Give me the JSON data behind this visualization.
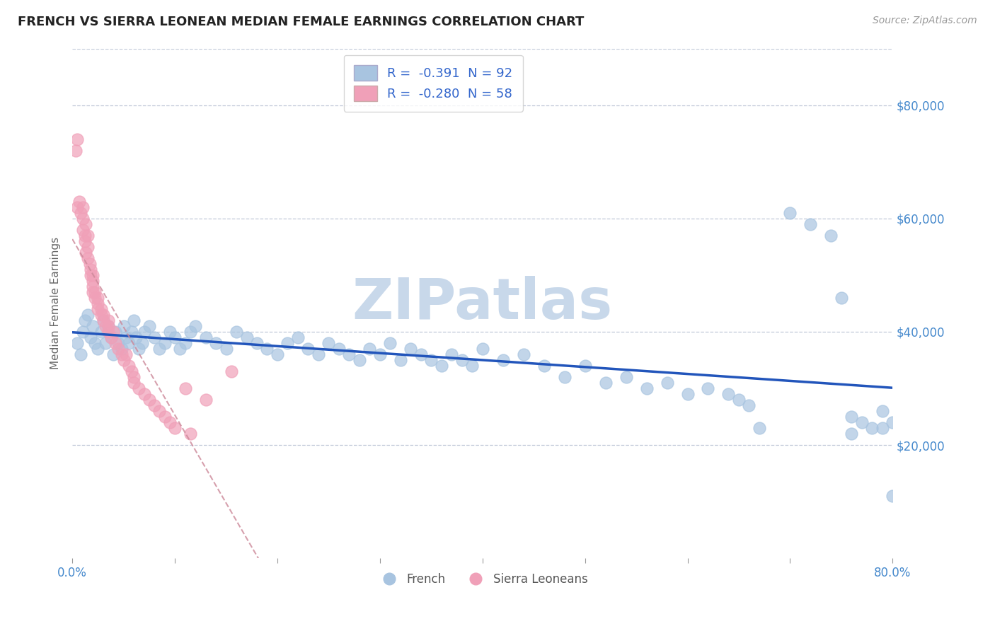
{
  "title": "FRENCH VS SIERRA LEONEAN MEDIAN FEMALE EARNINGS CORRELATION CHART",
  "source": "Source: ZipAtlas.com",
  "ylabel": "Median Female Earnings",
  "xlim": [
    0.0,
    0.8
  ],
  "ylim": [
    0,
    90000
  ],
  "yticks": [
    20000,
    40000,
    60000,
    80000
  ],
  "yticklabels": [
    "$20,000",
    "$40,000",
    "$60,000",
    "$80,000"
  ],
  "legend_r1": "R =  -0.391  N = 92",
  "legend_r2": "R =  -0.280  N = 58",
  "french_color": "#a8c4e0",
  "sierra_color": "#f0a0b8",
  "trendline_french_color": "#2255bb",
  "trendline_sierra_color": "#cc8899",
  "watermark": "ZIPatlas",
  "watermark_color": "#c8d8ea",
  "background_color": "#ffffff",
  "grid_color": "#c0c8d8",
  "french_x": [
    0.005,
    0.008,
    0.01,
    0.012,
    0.015,
    0.018,
    0.02,
    0.022,
    0.025,
    0.028,
    0.03,
    0.032,
    0.035,
    0.038,
    0.04,
    0.042,
    0.045,
    0.048,
    0.05,
    0.052,
    0.055,
    0.058,
    0.06,
    0.062,
    0.065,
    0.068,
    0.07,
    0.075,
    0.08,
    0.085,
    0.09,
    0.095,
    0.1,
    0.105,
    0.11,
    0.115,
    0.12,
    0.13,
    0.14,
    0.15,
    0.16,
    0.17,
    0.18,
    0.19,
    0.2,
    0.21,
    0.22,
    0.23,
    0.24,
    0.25,
    0.26,
    0.27,
    0.28,
    0.29,
    0.3,
    0.31,
    0.32,
    0.33,
    0.34,
    0.35,
    0.36,
    0.37,
    0.38,
    0.39,
    0.4,
    0.42,
    0.44,
    0.46,
    0.48,
    0.5,
    0.52,
    0.54,
    0.56,
    0.58,
    0.6,
    0.62,
    0.64,
    0.65,
    0.66,
    0.67,
    0.7,
    0.72,
    0.74,
    0.75,
    0.76,
    0.77,
    0.78,
    0.79,
    0.8,
    0.8,
    0.79,
    0.76
  ],
  "french_y": [
    38000,
    36000,
    40000,
    42000,
    43000,
    39000,
    41000,
    38000,
    37000,
    40000,
    42000,
    38000,
    41000,
    39000,
    36000,
    40000,
    38000,
    37000,
    41000,
    39000,
    38000,
    40000,
    42000,
    39000,
    37000,
    38000,
    40000,
    41000,
    39000,
    37000,
    38000,
    40000,
    39000,
    37000,
    38000,
    40000,
    41000,
    39000,
    38000,
    37000,
    40000,
    39000,
    38000,
    37000,
    36000,
    38000,
    39000,
    37000,
    36000,
    38000,
    37000,
    36000,
    35000,
    37000,
    36000,
    38000,
    35000,
    37000,
    36000,
    35000,
    34000,
    36000,
    35000,
    34000,
    37000,
    35000,
    36000,
    34000,
    32000,
    34000,
    31000,
    32000,
    30000,
    31000,
    29000,
    30000,
    29000,
    28000,
    27000,
    23000,
    61000,
    59000,
    57000,
    46000,
    25000,
    24000,
    23000,
    26000,
    24000,
    11000,
    23000,
    22000
  ],
  "sierra_x": [
    0.003,
    0.005,
    0.005,
    0.007,
    0.008,
    0.01,
    0.01,
    0.01,
    0.012,
    0.012,
    0.013,
    0.013,
    0.015,
    0.015,
    0.015,
    0.017,
    0.018,
    0.018,
    0.02,
    0.02,
    0.02,
    0.02,
    0.022,
    0.022,
    0.025,
    0.025,
    0.025,
    0.028,
    0.028,
    0.03,
    0.03,
    0.032,
    0.035,
    0.035,
    0.035,
    0.038,
    0.04,
    0.042,
    0.045,
    0.048,
    0.05,
    0.052,
    0.055,
    0.058,
    0.06,
    0.06,
    0.065,
    0.07,
    0.075,
    0.08,
    0.085,
    0.09,
    0.095,
    0.1,
    0.11,
    0.115,
    0.13,
    0.155
  ],
  "sierra_y": [
    72000,
    74000,
    62000,
    63000,
    61000,
    60000,
    62000,
    58000,
    57000,
    56000,
    59000,
    54000,
    57000,
    55000,
    53000,
    52000,
    50000,
    51000,
    49000,
    50000,
    47000,
    48000,
    46000,
    47000,
    44000,
    45000,
    46000,
    43000,
    44000,
    42000,
    43000,
    41000,
    40000,
    41000,
    42000,
    39000,
    40000,
    38000,
    37000,
    36000,
    35000,
    36000,
    34000,
    33000,
    32000,
    31000,
    30000,
    29000,
    28000,
    27000,
    26000,
    25000,
    24000,
    23000,
    30000,
    22000,
    28000,
    33000
  ]
}
